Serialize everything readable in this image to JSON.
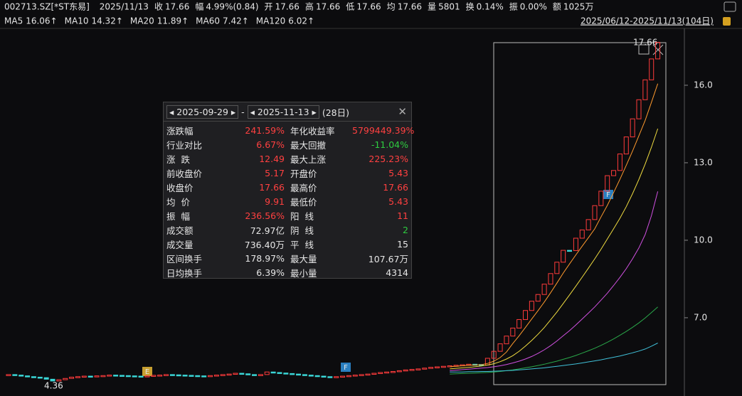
{
  "header": {
    "symbol": "002713.SZ[*ST东易]",
    "date": "2025/11/13",
    "fields": [
      {
        "label": "收",
        "value": "17.66",
        "color": "#ff4040"
      },
      {
        "label": "幅",
        "value": "4.99%(0.84)",
        "color": "#ff4040"
      },
      {
        "label": "开",
        "value": "17.66",
        "color": "#ff4040"
      },
      {
        "label": "高",
        "value": "17.66",
        "color": "#ff4040"
      },
      {
        "label": "低",
        "value": "17.66",
        "color": "#ff4040"
      },
      {
        "label": "均",
        "value": "17.66",
        "color": "#ff4040"
      },
      {
        "label": "量",
        "value": "5801",
        "color": "#e6e6e6"
      },
      {
        "label": "换",
        "value": "0.14%",
        "color": "#e6e6e6"
      },
      {
        "label": "振",
        "value": "0.00%",
        "color": "#e6e6e6"
      },
      {
        "label": "额",
        "value": "1025万",
        "color": "#e6e6e6"
      }
    ]
  },
  "range_label": "2025/06/12-2025/11/13(104日)",
  "chart_data": {
    "type": "candlestick",
    "ylim": [
      3.97,
      18.2
    ],
    "yticks": [
      {
        "value": 16,
        "label": "16.0"
      },
      {
        "value": 13,
        "label": "13.0"
      },
      {
        "value": 10,
        "label": "10.0"
      },
      {
        "value": 7,
        "label": "7.0"
      }
    ],
    "up_color": "#ff3b3b",
    "down_color": "#3ad6d6",
    "closes": [
      4.8,
      4.78,
      4.75,
      4.72,
      4.7,
      4.68,
      4.62,
      4.55,
      4.6,
      4.65,
      4.7,
      4.72,
      4.74,
      4.73,
      4.75,
      4.76,
      4.78,
      4.77,
      4.76,
      4.75,
      4.74,
      4.73,
      4.75,
      4.77,
      4.78,
      4.8,
      4.79,
      4.78,
      4.77,
      4.76,
      4.75,
      4.74,
      4.76,
      4.78,
      4.8,
      4.82,
      4.85,
      4.83,
      4.8,
      4.78,
      4.8,
      4.9,
      4.88,
      4.86,
      4.84,
      4.82,
      4.8,
      4.78,
      4.76,
      4.74,
      4.72,
      4.7,
      4.72,
      4.74,
      4.76,
      4.78,
      4.8,
      4.82,
      4.85,
      4.88,
      4.9,
      4.92,
      4.95,
      4.98,
      5.0,
      5.02,
      5.05,
      5.08,
      5.1,
      5.12,
      5.14,
      5.16,
      5.18,
      5.2,
      5.19,
      5.17,
      5.43,
      5.7,
      5.99,
      6.29,
      6.6,
      6.93,
      7.28,
      7.64,
      7.9,
      8.3,
      8.71,
      9.15,
      9.61,
      9.6,
      10.08,
      10.4,
      10.8,
      11.34,
      11.9,
      12.5,
      12.7,
      13.34,
      14.0,
      14.7,
      15.44,
      16.21,
      17.02,
      17.66
    ],
    "series": [
      {
        "name": "MA5",
        "legend_label": "16.06↑",
        "color": "#ff9a2e",
        "values": [
          null,
          null,
          null,
          null,
          null,
          null,
          null,
          null,
          null,
          null,
          null,
          null,
          null,
          null,
          null,
          null,
          null,
          null,
          null,
          null,
          null,
          null,
          null,
          null,
          null,
          null,
          null,
          null,
          null,
          null,
          null,
          null,
          null,
          null,
          null,
          null,
          null,
          null,
          null,
          null,
          null,
          null,
          null,
          null,
          null,
          null,
          null,
          null,
          null,
          null,
          null,
          null,
          null,
          null,
          null,
          null,
          null,
          null,
          null,
          null,
          null,
          null,
          null,
          null,
          null,
          null,
          null,
          null,
          null,
          null,
          5.1,
          5.12,
          5.14,
          5.16,
          5.17,
          5.18,
          5.23,
          5.32,
          5.46,
          5.67,
          6.0,
          6.3,
          6.62,
          6.95,
          7.27,
          7.61,
          7.97,
          8.34,
          8.73,
          9.08,
          9.43,
          9.77,
          10.1,
          10.44,
          10.9,
          11.35,
          11.85,
          12.36,
          12.9,
          13.45,
          14.04,
          14.64,
          15.34,
          16.06
        ]
      },
      {
        "name": "MA10",
        "legend_label": "14.32↑",
        "color": "#f0dc40",
        "values": [
          null,
          null,
          null,
          null,
          null,
          null,
          null,
          null,
          null,
          null,
          null,
          null,
          null,
          null,
          null,
          null,
          null,
          null,
          null,
          null,
          null,
          null,
          null,
          null,
          null,
          null,
          null,
          null,
          null,
          null,
          null,
          null,
          null,
          null,
          null,
          null,
          null,
          null,
          null,
          null,
          null,
          null,
          null,
          null,
          null,
          null,
          null,
          null,
          null,
          null,
          null,
          null,
          null,
          null,
          null,
          null,
          null,
          null,
          null,
          null,
          null,
          null,
          null,
          null,
          null,
          null,
          null,
          null,
          null,
          null,
          5.02,
          5.04,
          5.06,
          5.08,
          5.1,
          5.13,
          5.17,
          5.22,
          5.3,
          5.4,
          5.53,
          5.7,
          5.9,
          6.12,
          6.36,
          6.62,
          6.92,
          7.22,
          7.55,
          7.88,
          8.22,
          8.57,
          8.92,
          9.28,
          9.65,
          10.05,
          10.45,
          10.85,
          11.3,
          11.8,
          12.35,
          12.95,
          13.6,
          14.32
        ]
      },
      {
        "name": "MA20",
        "legend_label": "11.89↑",
        "color": "#d050e0",
        "values": [
          null,
          null,
          null,
          null,
          null,
          null,
          null,
          null,
          null,
          null,
          null,
          null,
          null,
          null,
          null,
          null,
          null,
          null,
          null,
          null,
          null,
          null,
          null,
          null,
          null,
          null,
          null,
          null,
          null,
          null,
          null,
          null,
          null,
          null,
          null,
          null,
          null,
          null,
          null,
          null,
          null,
          null,
          null,
          null,
          null,
          null,
          null,
          null,
          null,
          null,
          null,
          null,
          null,
          null,
          null,
          null,
          null,
          null,
          null,
          null,
          null,
          null,
          null,
          null,
          null,
          null,
          null,
          null,
          null,
          null,
          4.95,
          4.97,
          4.99,
          5.01,
          5.03,
          5.05,
          5.07,
          5.1,
          5.14,
          5.19,
          5.25,
          5.32,
          5.4,
          5.5,
          5.62,
          5.76,
          5.92,
          6.1,
          6.3,
          6.5,
          6.72,
          6.95,
          7.18,
          7.42,
          7.68,
          7.95,
          8.25,
          8.56,
          8.9,
          9.28,
          9.7,
          10.22,
          10.95,
          11.89
        ]
      },
      {
        "name": "MA60",
        "legend_label": "7.42↑",
        "color": "#2aa84a",
        "values": [
          null,
          null,
          null,
          null,
          null,
          null,
          null,
          null,
          null,
          null,
          null,
          null,
          null,
          null,
          null,
          null,
          null,
          null,
          null,
          null,
          null,
          null,
          null,
          null,
          null,
          null,
          null,
          null,
          null,
          null,
          null,
          null,
          null,
          null,
          null,
          null,
          null,
          null,
          null,
          null,
          null,
          null,
          null,
          null,
          null,
          null,
          null,
          null,
          null,
          null,
          null,
          null,
          null,
          null,
          null,
          null,
          null,
          null,
          null,
          null,
          null,
          null,
          null,
          null,
          null,
          null,
          null,
          null,
          null,
          null,
          4.82,
          4.83,
          4.84,
          4.85,
          4.86,
          4.87,
          4.88,
          4.9,
          4.92,
          4.95,
          4.98,
          5.02,
          5.06,
          5.1,
          5.15,
          5.2,
          5.26,
          5.32,
          5.39,
          5.46,
          5.54,
          5.63,
          5.72,
          5.82,
          5.93,
          6.05,
          6.18,
          6.32,
          6.47,
          6.63,
          6.8,
          6.99,
          7.2,
          7.42
        ]
      },
      {
        "name": "MA120",
        "legend_label": "6.02↑",
        "color": "#40c0d8",
        "values": [
          null,
          null,
          null,
          null,
          null,
          null,
          null,
          null,
          null,
          null,
          null,
          null,
          null,
          null,
          null,
          null,
          null,
          null,
          null,
          null,
          null,
          null,
          null,
          null,
          null,
          null,
          null,
          null,
          null,
          null,
          null,
          null,
          null,
          null,
          null,
          null,
          null,
          null,
          null,
          null,
          null,
          null,
          null,
          null,
          null,
          null,
          null,
          null,
          null,
          null,
          null,
          null,
          null,
          null,
          null,
          null,
          null,
          null,
          null,
          null,
          null,
          null,
          null,
          null,
          null,
          null,
          null,
          null,
          null,
          null,
          4.9,
          4.9,
          4.9,
          4.91,
          4.91,
          4.92,
          4.92,
          4.93,
          4.94,
          4.95,
          4.96,
          4.98,
          5.0,
          5.02,
          5.04,
          5.06,
          5.09,
          5.12,
          5.15,
          5.18,
          5.21,
          5.25,
          5.29,
          5.33,
          5.37,
          5.42,
          5.47,
          5.52,
          5.58,
          5.64,
          5.71,
          5.79,
          5.9,
          6.02
        ]
      }
    ],
    "annotations": {
      "low": "4.36",
      "high": "17.66"
    }
  },
  "markers": [
    "E",
    "F",
    "F"
  ],
  "stats_panel": {
    "start_date": "2025-09-29",
    "separator": "-",
    "end_date": "2025-11-13",
    "days": "(28日)",
    "rows": [
      {
        "cells": [
          "涨跌幅",
          "241.59%",
          "年化收益率",
          "5799449.39%"
        ],
        "colors": [
          "#ff4040",
          "#ff4040"
        ]
      },
      {
        "cells": [
          "行业对比",
          "6.67%",
          "最大回撤",
          "-11.04%"
        ],
        "colors": [
          "#ff4040",
          "#2ecc40"
        ]
      },
      {
        "cells": [
          "涨  跌",
          "12.49",
          "最大上涨",
          "225.23%"
        ],
        "colors": [
          "#ff4040",
          "#ff4040"
        ]
      },
      {
        "cells": [
          "前收盘价",
          "5.17",
          "开盘价",
          "5.43"
        ],
        "colors": [
          "#ff4040",
          "#ff4040"
        ]
      },
      {
        "cells": [
          "收盘价",
          "17.66",
          "最高价",
          "17.66"
        ],
        "colors": [
          "#ff4040",
          "#ff4040"
        ]
      },
      {
        "cells": [
          "均  价",
          "9.91",
          "最低价",
          "5.43"
        ],
        "colors": [
          "#ff4040",
          "#ff4040"
        ]
      },
      {
        "cells": [
          "振  幅",
          "236.56%",
          "阳  线",
          "11"
        ],
        "colors": [
          "#ff4040",
          "#ff4040"
        ]
      },
      {
        "cells": [
          "成交额",
          "72.97亿",
          "阴  线",
          "2"
        ],
        "colors": [
          "#e6e6e6",
          "#2ecc40"
        ]
      },
      {
        "cells": [
          "成交量",
          "736.40万",
          "平  线",
          "15"
        ],
        "colors": [
          "#e6e6e6",
          "#e6e6e6"
        ]
      },
      {
        "cells": [
          "区间换手",
          "178.97%",
          "最大量",
          "107.67万"
        ],
        "colors": [
          "#e6e6e6",
          "#e6e6e6"
        ]
      },
      {
        "cells": [
          "日均换手",
          "6.39%",
          "最小量",
          "4314"
        ],
        "colors": [
          "#e6e6e6",
          "#e6e6e6"
        ]
      }
    ]
  }
}
